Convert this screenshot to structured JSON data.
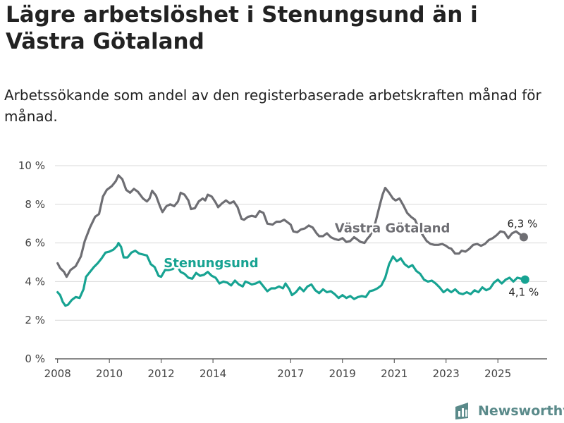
{
  "header": {
    "title": "Lägre arbetslöshet i Stenungsund än i Västra Götaland",
    "subtitle": "Arbetssökande som andel av den registerbaserade arbetskraften månad för månad."
  },
  "brand": {
    "name": "Newsworthy",
    "icon": "newsworthy-logo-icon"
  },
  "colors": {
    "vg": "#6e6e73",
    "sten": "#17a392",
    "grid": "#d9d9d9",
    "axis": "#444444"
  },
  "chart_data": {
    "type": "line",
    "title": "Lägre arbetslöshet i Stenungsund än i Västra Götaland",
    "subtitle": "Arbetssökande som andel av den registerbaserade arbetskraften månad för månad.",
    "xlabel": "",
    "ylabel": "",
    "xlim": [
      2007.9,
      2026.9
    ],
    "ylim": [
      0,
      10
    ],
    "grid": true,
    "x_ticks": [
      {
        "value": 2008,
        "label": "2008"
      },
      {
        "value": 2010,
        "label": "2010"
      },
      {
        "value": 2012,
        "label": "2012"
      },
      {
        "value": 2014,
        "label": "2014"
      },
      {
        "value": 2017,
        "label": "2017"
      },
      {
        "value": 2019,
        "label": "2019"
      },
      {
        "value": 2021,
        "label": "2021"
      },
      {
        "value": 2023,
        "label": "2023"
      },
      {
        "value": 2025,
        "label": "2025"
      }
    ],
    "y_ticks": [
      {
        "value": 0,
        "label": "0 %"
      },
      {
        "value": 2,
        "label": "2 %"
      },
      {
        "value": 4,
        "label": "4 %"
      },
      {
        "value": 6,
        "label": "6 %"
      },
      {
        "value": 8,
        "label": "8 %"
      },
      {
        "value": 10,
        "label": "10 %"
      }
    ],
    "series": [
      {
        "name": "Västra Götaland",
        "color": "#6e6e73",
        "points": [
          [
            2008.0,
            4.95
          ],
          [
            2008.1,
            4.7
          ],
          [
            2008.25,
            4.5
          ],
          [
            2008.35,
            4.25
          ],
          [
            2008.5,
            4.6
          ],
          [
            2008.7,
            4.8
          ],
          [
            2008.9,
            5.3
          ],
          [
            2009.05,
            6.1
          ],
          [
            2009.25,
            6.8
          ],
          [
            2009.45,
            7.35
          ],
          [
            2009.6,
            7.5
          ],
          [
            2009.75,
            8.4
          ],
          [
            2009.9,
            8.75
          ],
          [
            2010.1,
            8.95
          ],
          [
            2010.25,
            9.2
          ],
          [
            2010.35,
            9.5
          ],
          [
            2010.5,
            9.3
          ],
          [
            2010.65,
            8.75
          ],
          [
            2010.8,
            8.6
          ],
          [
            2010.95,
            8.8
          ],
          [
            2011.1,
            8.65
          ],
          [
            2011.3,
            8.3
          ],
          [
            2011.45,
            8.15
          ],
          [
            2011.55,
            8.3
          ],
          [
            2011.65,
            8.7
          ],
          [
            2011.8,
            8.45
          ],
          [
            2011.95,
            7.9
          ],
          [
            2012.05,
            7.6
          ],
          [
            2012.2,
            7.9
          ],
          [
            2012.35,
            8.0
          ],
          [
            2012.5,
            7.9
          ],
          [
            2012.65,
            8.15
          ],
          [
            2012.75,
            8.6
          ],
          [
            2012.9,
            8.5
          ],
          [
            2013.05,
            8.2
          ],
          [
            2013.15,
            7.75
          ],
          [
            2013.3,
            7.8
          ],
          [
            2013.45,
            8.15
          ],
          [
            2013.6,
            8.3
          ],
          [
            2013.7,
            8.2
          ],
          [
            2013.8,
            8.5
          ],
          [
            2013.95,
            8.4
          ],
          [
            2014.1,
            8.1
          ],
          [
            2014.2,
            7.85
          ],
          [
            2014.35,
            8.05
          ],
          [
            2014.5,
            8.2
          ],
          [
            2014.65,
            8.05
          ],
          [
            2014.8,
            8.15
          ],
          [
            2014.95,
            7.85
          ],
          [
            2015.1,
            7.25
          ],
          [
            2015.2,
            7.2
          ],
          [
            2015.35,
            7.35
          ],
          [
            2015.5,
            7.4
          ],
          [
            2015.65,
            7.35
          ],
          [
            2015.8,
            7.65
          ],
          [
            2015.95,
            7.55
          ],
          [
            2016.1,
            7.0
          ],
          [
            2016.3,
            6.95
          ],
          [
            2016.45,
            7.1
          ],
          [
            2016.6,
            7.1
          ],
          [
            2016.75,
            7.2
          ],
          [
            2016.85,
            7.1
          ],
          [
            2017.0,
            6.95
          ],
          [
            2017.1,
            6.6
          ],
          [
            2017.25,
            6.55
          ],
          [
            2017.4,
            6.7
          ],
          [
            2017.55,
            6.75
          ],
          [
            2017.7,
            6.9
          ],
          [
            2017.85,
            6.8
          ],
          [
            2018.0,
            6.5
          ],
          [
            2018.1,
            6.35
          ],
          [
            2018.25,
            6.35
          ],
          [
            2018.4,
            6.5
          ],
          [
            2018.55,
            6.3
          ],
          [
            2018.7,
            6.2
          ],
          [
            2018.85,
            6.15
          ],
          [
            2019.0,
            6.25
          ],
          [
            2019.15,
            6.05
          ],
          [
            2019.3,
            6.1
          ],
          [
            2019.45,
            6.3
          ],
          [
            2019.55,
            6.2
          ],
          [
            2019.7,
            6.05
          ],
          [
            2019.85,
            6.0
          ],
          [
            2019.95,
            6.2
          ],
          [
            2020.05,
            6.35
          ],
          [
            2020.2,
            6.7
          ],
          [
            2020.3,
            7.2
          ],
          [
            2020.45,
            8.0
          ],
          [
            2020.55,
            8.5
          ],
          [
            2020.65,
            8.85
          ],
          [
            2020.8,
            8.6
          ],
          [
            2020.95,
            8.3
          ],
          [
            2021.05,
            8.2
          ],
          [
            2021.2,
            8.3
          ],
          [
            2021.35,
            7.95
          ],
          [
            2021.5,
            7.55
          ],
          [
            2021.65,
            7.35
          ],
          [
            2021.8,
            7.2
          ],
          [
            2021.95,
            6.75
          ],
          [
            2022.1,
            6.4
          ],
          [
            2022.25,
            6.1
          ],
          [
            2022.4,
            5.95
          ],
          [
            2022.55,
            5.9
          ],
          [
            2022.7,
            5.9
          ],
          [
            2022.85,
            5.95
          ],
          [
            2023.0,
            5.85
          ],
          [
            2023.1,
            5.75
          ],
          [
            2023.2,
            5.7
          ],
          [
            2023.35,
            5.45
          ],
          [
            2023.5,
            5.45
          ],
          [
            2023.6,
            5.6
          ],
          [
            2023.75,
            5.55
          ],
          [
            2023.9,
            5.7
          ],
          [
            2024.05,
            5.9
          ],
          [
            2024.2,
            5.95
          ],
          [
            2024.35,
            5.85
          ],
          [
            2024.5,
            5.95
          ],
          [
            2024.65,
            6.15
          ],
          [
            2024.8,
            6.25
          ],
          [
            2024.95,
            6.4
          ],
          [
            2025.1,
            6.6
          ],
          [
            2025.25,
            6.55
          ],
          [
            2025.4,
            6.25
          ],
          [
            2025.55,
            6.5
          ],
          [
            2025.7,
            6.6
          ],
          [
            2025.85,
            6.45
          ],
          [
            2026.0,
            6.3
          ]
        ],
        "end_label": "6,3 %",
        "line_label": "Västra Götaland",
        "label_at": [
          2018.7,
          6.55
        ]
      },
      {
        "name": "Stenungsund",
        "color": "#17a392",
        "points": [
          [
            2008.0,
            3.45
          ],
          [
            2008.1,
            3.3
          ],
          [
            2008.2,
            2.95
          ],
          [
            2008.3,
            2.75
          ],
          [
            2008.4,
            2.8
          ],
          [
            2008.55,
            3.05
          ],
          [
            2008.7,
            3.2
          ],
          [
            2008.85,
            3.15
          ],
          [
            2009.0,
            3.6
          ],
          [
            2009.1,
            4.25
          ],
          [
            2009.25,
            4.5
          ],
          [
            2009.4,
            4.75
          ],
          [
            2009.55,
            4.95
          ],
          [
            2009.7,
            5.2
          ],
          [
            2009.85,
            5.5
          ],
          [
            2010.0,
            5.55
          ],
          [
            2010.15,
            5.65
          ],
          [
            2010.3,
            5.85
          ],
          [
            2010.35,
            6.0
          ],
          [
            2010.45,
            5.8
          ],
          [
            2010.55,
            5.25
          ],
          [
            2010.7,
            5.25
          ],
          [
            2010.85,
            5.5
          ],
          [
            2011.0,
            5.6
          ],
          [
            2011.15,
            5.45
          ],
          [
            2011.3,
            5.4
          ],
          [
            2011.45,
            5.35
          ],
          [
            2011.6,
            4.9
          ],
          [
            2011.75,
            4.75
          ],
          [
            2011.9,
            4.3
          ],
          [
            2012.0,
            4.25
          ],
          [
            2012.15,
            4.6
          ],
          [
            2012.3,
            4.6
          ],
          [
            2012.45,
            4.65
          ],
          [
            2012.6,
            4.85
          ],
          [
            2012.75,
            4.5
          ],
          [
            2012.9,
            4.4
          ],
          [
            2013.05,
            4.2
          ],
          [
            2013.2,
            4.15
          ],
          [
            2013.35,
            4.45
          ],
          [
            2013.5,
            4.3
          ],
          [
            2013.65,
            4.35
          ],
          [
            2013.8,
            4.5
          ],
          [
            2013.95,
            4.3
          ],
          [
            2014.1,
            4.2
          ],
          [
            2014.25,
            3.9
          ],
          [
            2014.4,
            4.0
          ],
          [
            2014.55,
            3.95
          ],
          [
            2014.7,
            3.8
          ],
          [
            2014.85,
            4.05
          ],
          [
            2015.0,
            3.85
          ],
          [
            2015.15,
            3.75
          ],
          [
            2015.25,
            4.0
          ],
          [
            2015.35,
            3.95
          ],
          [
            2015.5,
            3.85
          ],
          [
            2015.65,
            3.9
          ],
          [
            2015.8,
            4.0
          ],
          [
            2015.95,
            3.75
          ],
          [
            2016.1,
            3.5
          ],
          [
            2016.25,
            3.65
          ],
          [
            2016.4,
            3.65
          ],
          [
            2016.55,
            3.75
          ],
          [
            2016.7,
            3.65
          ],
          [
            2016.8,
            3.9
          ],
          [
            2016.95,
            3.6
          ],
          [
            2017.05,
            3.3
          ],
          [
            2017.2,
            3.45
          ],
          [
            2017.35,
            3.7
          ],
          [
            2017.5,
            3.5
          ],
          [
            2017.65,
            3.75
          ],
          [
            2017.8,
            3.85
          ],
          [
            2017.95,
            3.55
          ],
          [
            2018.1,
            3.4
          ],
          [
            2018.25,
            3.6
          ],
          [
            2018.4,
            3.45
          ],
          [
            2018.55,
            3.5
          ],
          [
            2018.7,
            3.35
          ],
          [
            2018.85,
            3.15
          ],
          [
            2019.0,
            3.3
          ],
          [
            2019.15,
            3.15
          ],
          [
            2019.3,
            3.25
          ],
          [
            2019.45,
            3.1
          ],
          [
            2019.6,
            3.2
          ],
          [
            2019.75,
            3.25
          ],
          [
            2019.9,
            3.2
          ],
          [
            2020.05,
            3.5
          ],
          [
            2020.2,
            3.55
          ],
          [
            2020.35,
            3.65
          ],
          [
            2020.5,
            3.8
          ],
          [
            2020.65,
            4.2
          ],
          [
            2020.8,
            4.9
          ],
          [
            2020.95,
            5.3
          ],
          [
            2021.1,
            5.05
          ],
          [
            2021.25,
            5.2
          ],
          [
            2021.4,
            4.9
          ],
          [
            2021.55,
            4.75
          ],
          [
            2021.7,
            4.85
          ],
          [
            2021.85,
            4.55
          ],
          [
            2022.0,
            4.4
          ],
          [
            2022.15,
            4.1
          ],
          [
            2022.3,
            4.0
          ],
          [
            2022.45,
            4.05
          ],
          [
            2022.6,
            3.9
          ],
          [
            2022.75,
            3.7
          ],
          [
            2022.9,
            3.45
          ],
          [
            2023.05,
            3.6
          ],
          [
            2023.2,
            3.45
          ],
          [
            2023.35,
            3.6
          ],
          [
            2023.5,
            3.4
          ],
          [
            2023.65,
            3.35
          ],
          [
            2023.8,
            3.45
          ],
          [
            2023.95,
            3.35
          ],
          [
            2024.1,
            3.55
          ],
          [
            2024.25,
            3.45
          ],
          [
            2024.4,
            3.7
          ],
          [
            2024.55,
            3.55
          ],
          [
            2024.7,
            3.65
          ],
          [
            2024.85,
            3.95
          ],
          [
            2025.0,
            4.1
          ],
          [
            2025.15,
            3.9
          ],
          [
            2025.3,
            4.1
          ],
          [
            2025.45,
            4.2
          ],
          [
            2025.6,
            4.0
          ],
          [
            2025.75,
            4.2
          ],
          [
            2025.9,
            4.15
          ],
          [
            2026.05,
            4.1
          ]
        ],
        "end_label": "4,1 %",
        "line_label": "Stenungsund",
        "label_at": [
          2012.1,
          4.75
        ]
      }
    ]
  }
}
